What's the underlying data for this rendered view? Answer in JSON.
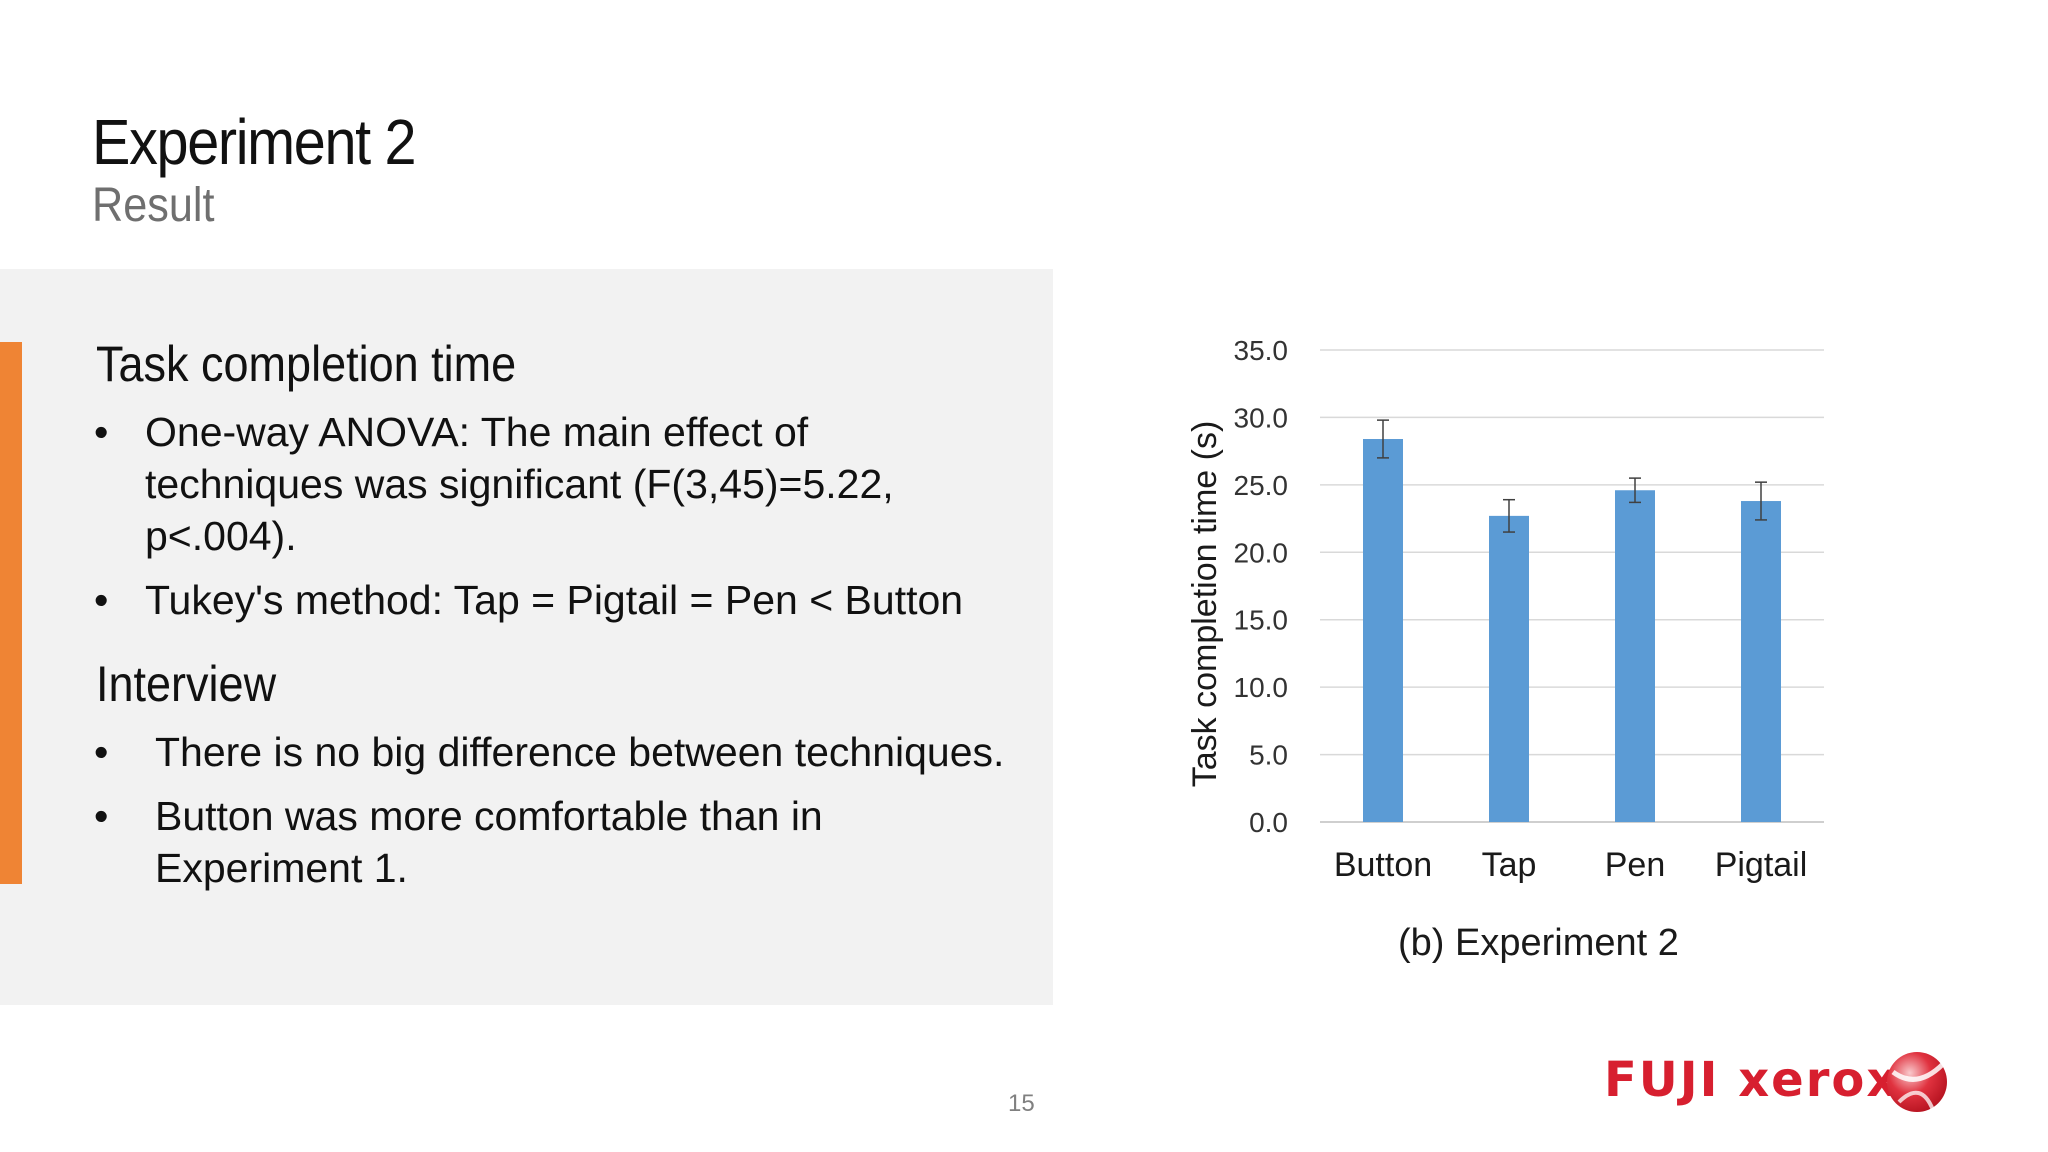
{
  "slide": {
    "title": "Experiment 2",
    "subtitle": "Result",
    "page_number": "15",
    "accent_color": "#ef8434"
  },
  "sections": [
    {
      "heading": "Task completion time",
      "bullets": [
        {
          "lines": [
            "One-way ANOVA: The main effect of",
            "techniques was significant (F(3,45)=5.22,",
            "p<.004)."
          ]
        },
        {
          "lines": [
            "Tukey's method: Tap = Pigtail = Pen < Button"
          ]
        }
      ]
    },
    {
      "heading": "Interview",
      "bullets": [
        {
          "lines": [
            "There is no big difference between techniques."
          ]
        },
        {
          "lines": [
            "Button was more comfortable than in",
            "Experiment 1."
          ]
        }
      ]
    }
  ],
  "bullet_symbol": "•",
  "chart_data": {
    "type": "bar",
    "categories": [
      "Button",
      "Tap",
      "Pen",
      "Pigtail"
    ],
    "values": [
      28.4,
      22.7,
      24.6,
      23.8
    ],
    "error": [
      1.4,
      1.2,
      0.9,
      1.4
    ],
    "ylabel": "Task completion time (s)",
    "caption": "(b) Experiment 2",
    "ylim": [
      0,
      35
    ],
    "yticks": [
      "0.0",
      "5.0",
      "10.0",
      "15.0",
      "20.0",
      "25.0",
      "30.0",
      "35.0"
    ],
    "grid": true,
    "bar_color": "#5b9bd5"
  },
  "logo": {
    "text": "FUJI xerox",
    "color": "#d71f2f",
    "icon": "globe-icon"
  }
}
